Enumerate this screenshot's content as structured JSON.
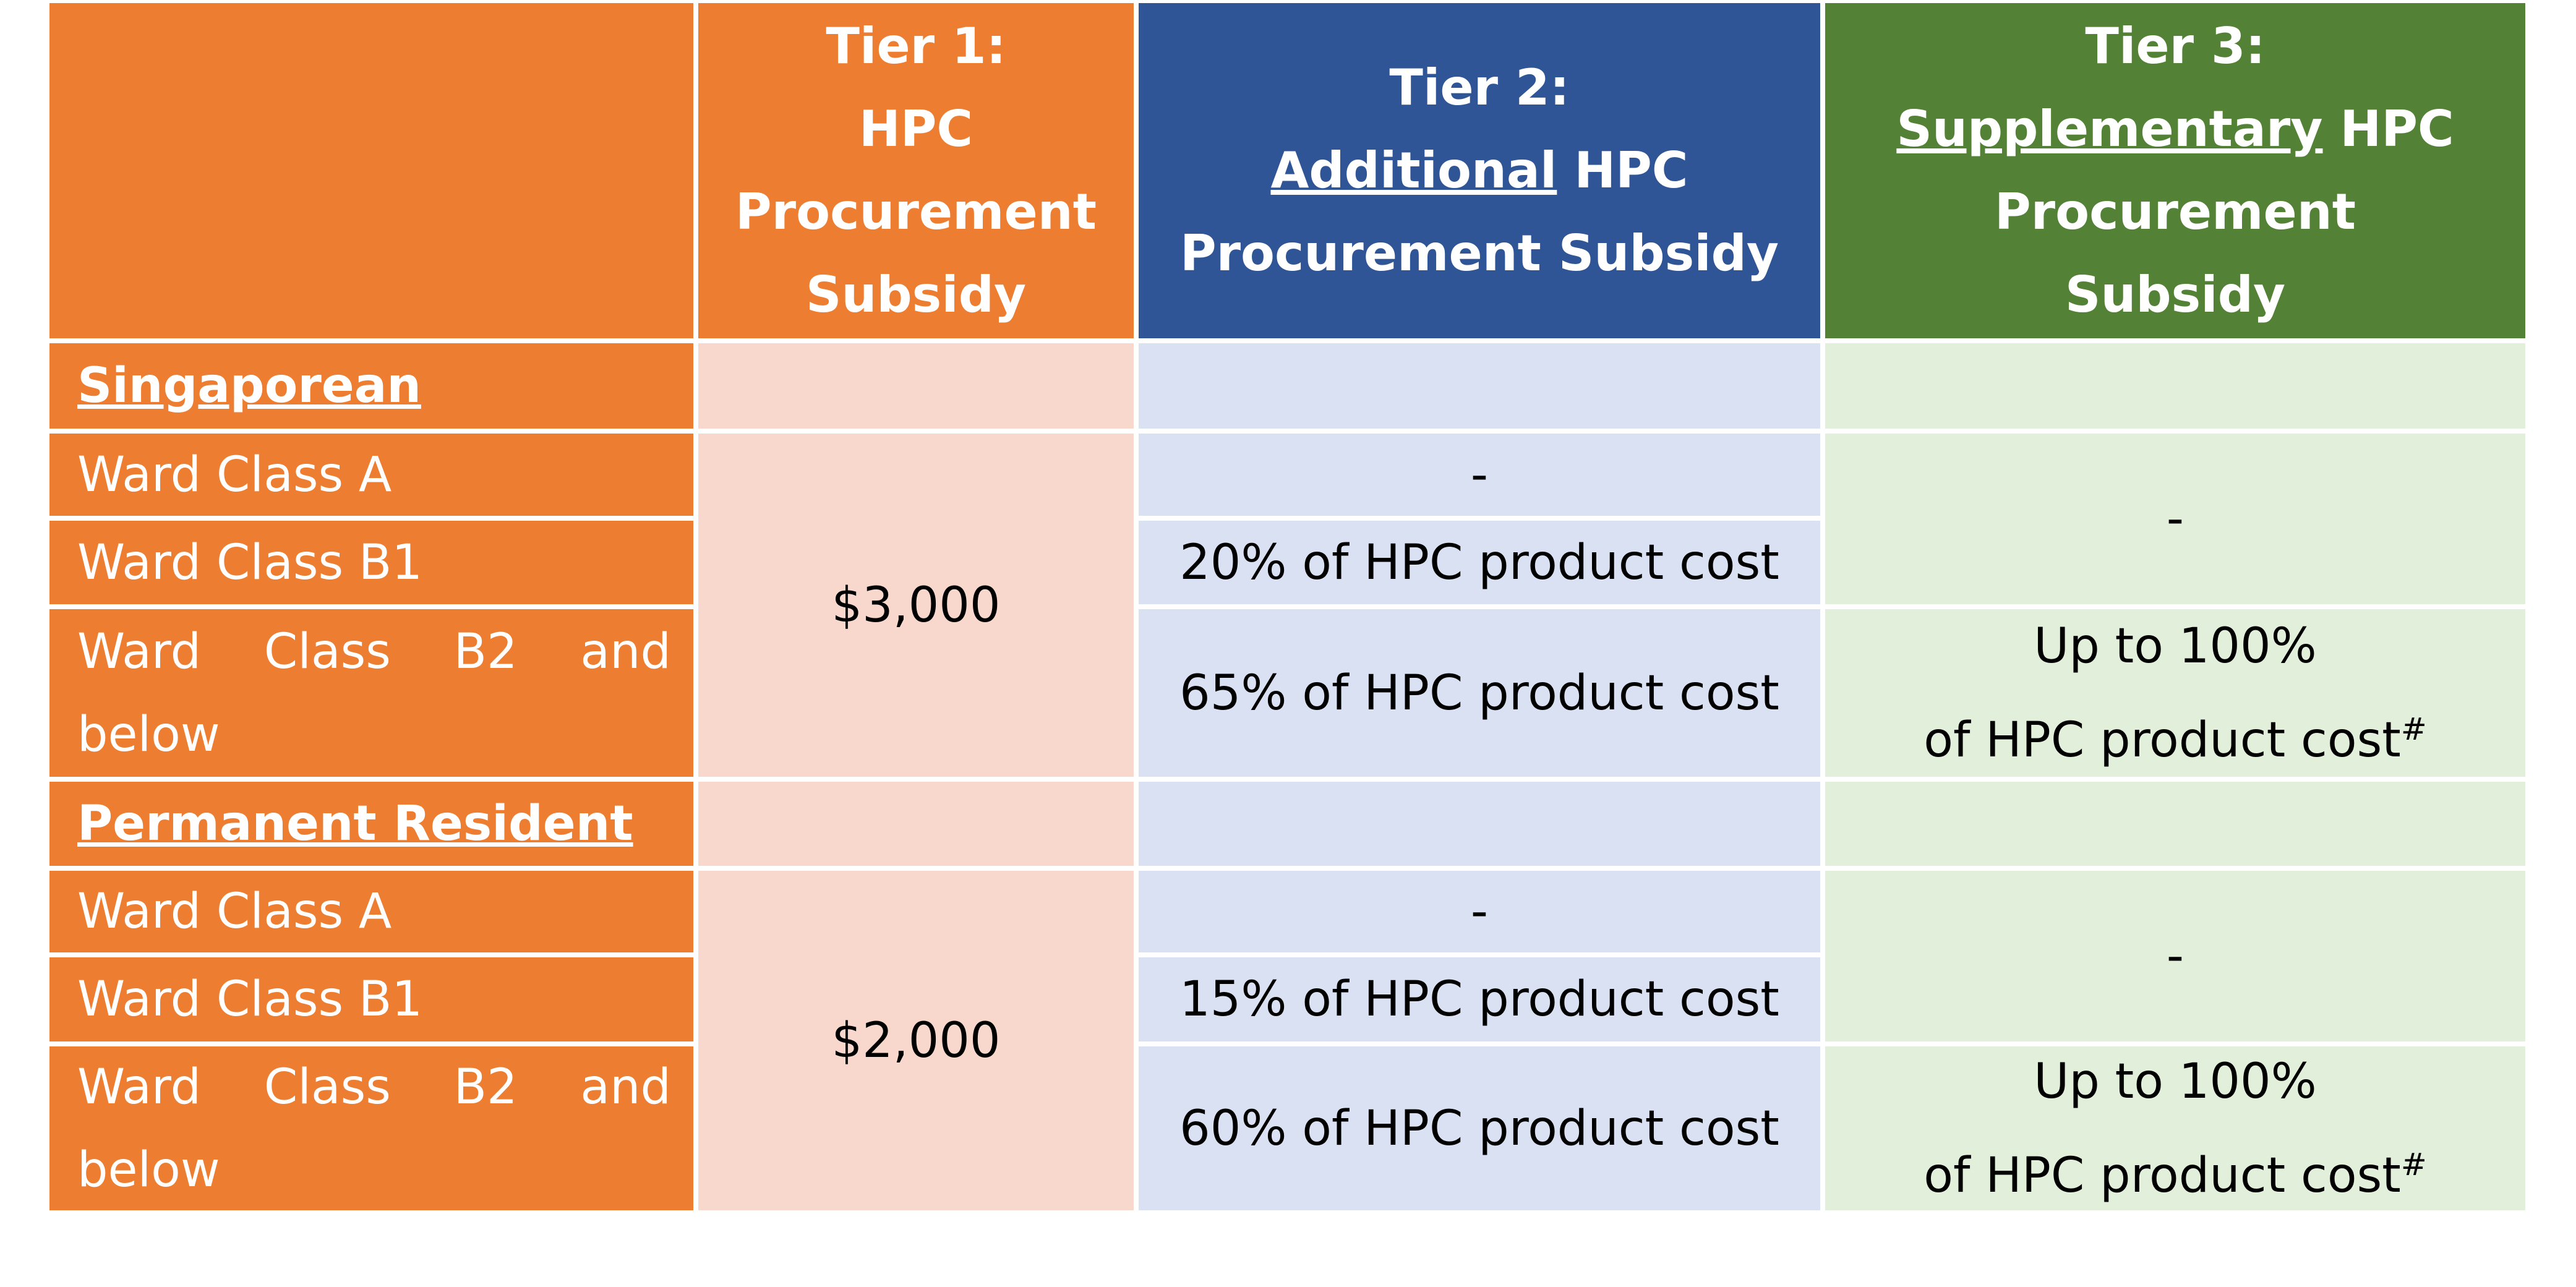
{
  "header": {
    "columns": [
      {
        "lines": [
          [
            {
              "text": "Tier 1:"
            }
          ],
          [
            {
              "text": "HPC"
            }
          ],
          [
            {
              "text": "Procurement"
            }
          ],
          [
            {
              "text": "Subsidy"
            }
          ]
        ]
      },
      {
        "lines": [
          [
            {
              "text": "Tier 2:"
            }
          ],
          [
            {
              "text": "Additional",
              "underline": true
            },
            {
              "text": " HPC"
            }
          ],
          [
            {
              "text": "Procurement Subsidy"
            }
          ]
        ]
      },
      {
        "lines": [
          [
            {
              "text": "Tier 3:"
            }
          ],
          [
            {
              "text": "Supplementary",
              "underline": true
            },
            {
              "text": " HPC"
            }
          ],
          [
            {
              "text": "Procurement"
            }
          ],
          [
            {
              "text": "Subsidy"
            }
          ]
        ]
      }
    ]
  },
  "sections": [
    {
      "name": "Singaporean",
      "tier1": "$3,000",
      "rows": [
        {
          "label": "Ward Class A",
          "tier2": "-"
        },
        {
          "label": "Ward Class B1",
          "tier2": "20% of HPC product cost"
        },
        {
          "label": "Ward Class B2 and below",
          "tier2": "65% of HPC product cost"
        }
      ],
      "tier3": [
        {
          "lines": [
            "-"
          ]
        },
        {
          "lines": [
            "Up to 100%",
            "of HPC product cost"
          ],
          "note": "#"
        }
      ]
    },
    {
      "name": "Permanent Resident",
      "tier1": "$2,000",
      "rows": [
        {
          "label": "Ward Class A",
          "tier2": "-"
        },
        {
          "label": "Ward Class B1",
          "tier2": "15% of HPC product cost"
        },
        {
          "label": "Ward Class B2 and below",
          "tier2": "60% of HPC product cost"
        }
      ],
      "tier3": [
        {
          "lines": [
            "-"
          ]
        },
        {
          "lines": [
            "Up to 100%",
            "of HPC product cost"
          ],
          "note": "#"
        }
      ]
    }
  ]
}
